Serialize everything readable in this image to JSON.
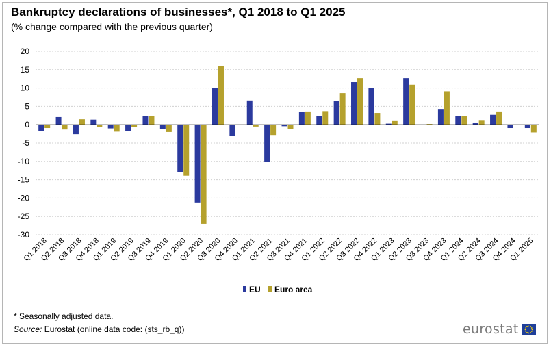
{
  "title": "Bankruptcy declarations of businesses*, Q1 2018 to Q1 2025",
  "subtitle": "(% change compared with the previous quarter)",
  "footnote": "* Seasonally adjusted data.",
  "source_label": "Source:",
  "source_text": " Eurostat (online data code: (sts_rb_q))",
  "logo_text": "eurostat",
  "colors": {
    "eu": "#2b3a9e",
    "euro_area": "#b5a12d",
    "grid": "#d0d0d0"
  },
  "chart_data": {
    "type": "bar",
    "title": "Bankruptcy declarations of businesses*, Q1 2018 to Q1 2025",
    "subtitle": "(% change compared with the previous quarter)",
    "ylim": [
      -30,
      20
    ],
    "yticks": [
      20,
      15,
      10,
      5,
      0,
      -5,
      -10,
      -15,
      -20,
      -25,
      -30
    ],
    "grid": true,
    "legend_position": "bottom",
    "categories": [
      "Q1 2018",
      "Q2 2018",
      "Q3 2018",
      "Q4 2018",
      "Q1 2019",
      "Q2 2019",
      "Q3 2019",
      "Q4 2019",
      "Q1 2020",
      "Q2 2020",
      "Q3 2020",
      "Q4 2020",
      "Q1 2021",
      "Q2 2021",
      "Q3 2021",
      "Q4 2021",
      "Q1 2022",
      "Q2 2022",
      "Q3 2022",
      "Q4 2022",
      "Q1 2023",
      "Q2 2023",
      "Q3 2023",
      "Q4 2023",
      "Q1 2024",
      "Q2 2024",
      "Q3 2024",
      "Q4 2024",
      "Q1 2025"
    ],
    "series": [
      {
        "name": "EU",
        "values": [
          -1.8,
          2.1,
          -2.6,
          1.4,
          -1.0,
          -1.7,
          2.3,
          -1.1,
          -13.0,
          -21.2,
          10.0,
          -3.1,
          6.6,
          -10.1,
          -0.4,
          3.5,
          2.4,
          6.4,
          11.6,
          10.0,
          0.3,
          12.7,
          0.0,
          4.3,
          2.3,
          0.6,
          2.7,
          -0.9,
          -0.9
        ]
      },
      {
        "name": "Euro area",
        "values": [
          -0.9,
          -1.3,
          1.5,
          -0.7,
          -1.9,
          -0.6,
          2.3,
          -2.0,
          -13.9,
          -27.0,
          16.0,
          0.0,
          -0.5,
          -2.8,
          -1.1,
          3.6,
          3.7,
          8.6,
          12.7,
          3.2,
          1.0,
          10.9,
          0.2,
          9.1,
          2.4,
          1.1,
          3.6,
          0.0,
          -2.1
        ]
      }
    ]
  }
}
